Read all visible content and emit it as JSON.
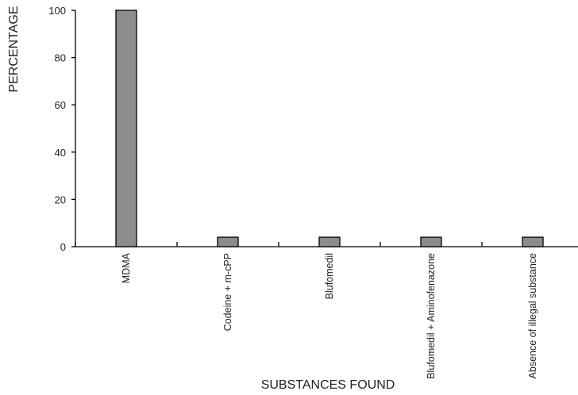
{
  "chart_data": {
    "type": "bar",
    "title": "",
    "xlabel": "SUBSTANCES FOUND",
    "ylabel": "PERCENTAGE",
    "categories": [
      "MDMA",
      "Codeine + m-cPP",
      "Blufomedil",
      "Blufomedil + Aminofenazone",
      "Absence of illegal substance"
    ],
    "values": [
      100,
      4,
      4,
      4,
      4
    ],
    "ylim": [
      0,
      100
    ],
    "yticks": [
      0,
      20,
      40,
      60,
      80,
      100
    ],
    "bar_color": "#8c8c8c",
    "grid": false,
    "legend": "none"
  }
}
